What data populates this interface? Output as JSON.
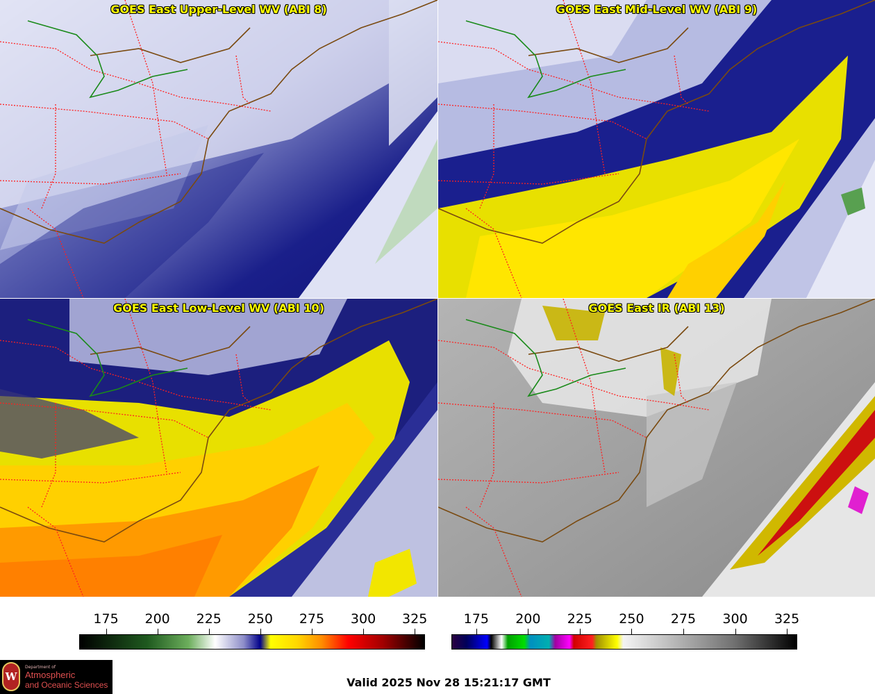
{
  "panels": [
    {
      "title": "GOES East Upper-Level WV (ABI 8)",
      "product": "upper-wv"
    },
    {
      "title": "GOES East Mid-Level WV (ABI 9)",
      "product": "mid-wv"
    },
    {
      "title": "GOES East Low-Level WV (ABI 10)",
      "product": "low-wv"
    },
    {
      "title": "GOES East IR (ABI 13)",
      "product": "ir"
    }
  ],
  "colorbars": {
    "wv": {
      "ticks": [
        "175",
        "200",
        "225",
        "250",
        "275",
        "300",
        "325"
      ],
      "range": [
        162,
        330
      ],
      "stops": [
        {
          "value": 162,
          "color": "#000000"
        },
        {
          "value": 195,
          "color": "#1f5a1f"
        },
        {
          "value": 215,
          "color": "#6cae5c"
        },
        {
          "value": 228,
          "color": "#ffffff"
        },
        {
          "value": 242,
          "color": "#8c8cc8"
        },
        {
          "value": 250,
          "color": "#00008a"
        },
        {
          "value": 255,
          "color": "#ffff00"
        },
        {
          "value": 268,
          "color": "#ffd700"
        },
        {
          "value": 280,
          "color": "#ff8c00"
        },
        {
          "value": 293,
          "color": "#ff0000"
        },
        {
          "value": 310,
          "color": "#a00000"
        },
        {
          "value": 330,
          "color": "#000000"
        }
      ]
    },
    "ir": {
      "ticks": [
        "175",
        "200",
        "225",
        "250",
        "275",
        "300",
        "325"
      ],
      "range": [
        163,
        330
      ],
      "stops": [
        {
          "value": 163,
          "color": "#2a0040"
        },
        {
          "value": 170,
          "color": "#00005a"
        },
        {
          "value": 180,
          "color": "#0000ff"
        },
        {
          "value": 182,
          "color": "#000000"
        },
        {
          "value": 187,
          "color": "#ffffff"
        },
        {
          "value": 190,
          "color": "#00a000"
        },
        {
          "value": 198,
          "color": "#00dd00"
        },
        {
          "value": 201,
          "color": "#0090c0"
        },
        {
          "value": 210,
          "color": "#00b0b0"
        },
        {
          "value": 213,
          "color": "#a000a0"
        },
        {
          "value": 220,
          "color": "#ff00ff"
        },
        {
          "value": 222,
          "color": "#d00000"
        },
        {
          "value": 231,
          "color": "#ff2020"
        },
        {
          "value": 233,
          "color": "#a09000"
        },
        {
          "value": 243,
          "color": "#ffff00"
        },
        {
          "value": 246,
          "color": "#f4f4f4"
        },
        {
          "value": 300,
          "color": "#707070"
        },
        {
          "value": 330,
          "color": "#000000"
        }
      ]
    }
  },
  "branding": {
    "line1": "Department of",
    "line2": "Atmospheric",
    "line3": "and Oceanic Sciences",
    "seal": "W"
  },
  "valid_time": "Valid 2025 Nov 28 15:21:17 GMT",
  "colors": {
    "coast": "#7a4a10",
    "state_border": "#ff2020",
    "lake_outline": "#1a8a1a"
  }
}
